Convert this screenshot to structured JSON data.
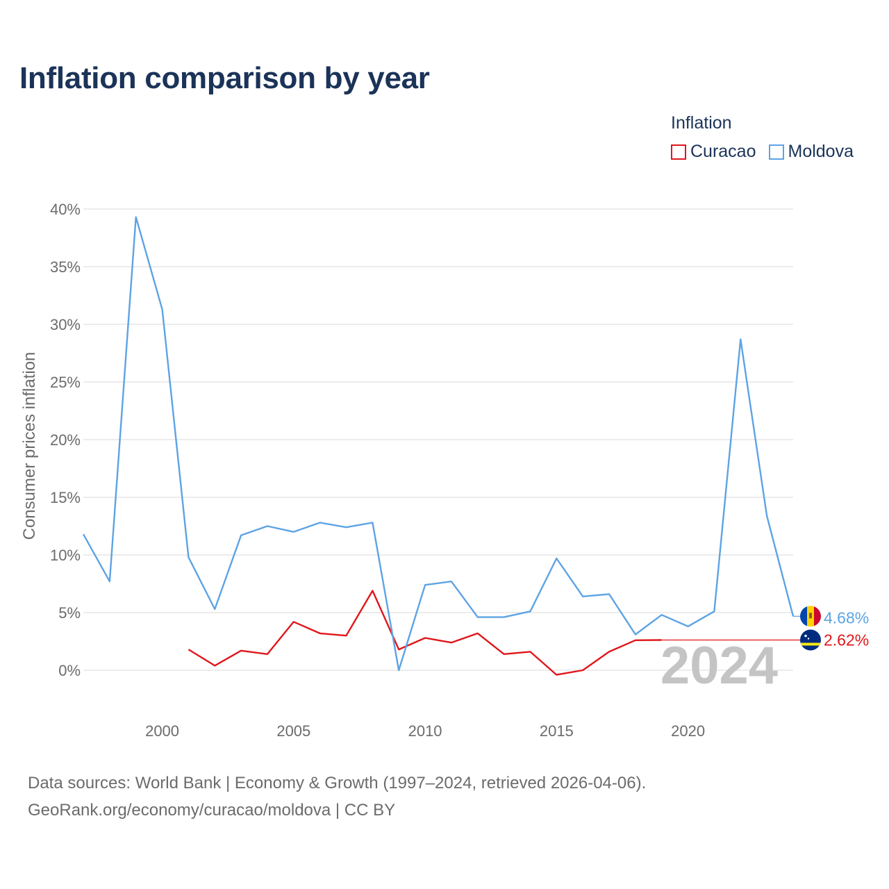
{
  "chart_data": {
    "type": "line",
    "title": "Inflation comparison by year",
    "legend_title": "Inflation",
    "ylabel": "Consumer prices inflation",
    "xlabel": "",
    "xlim": [
      1997,
      2024
    ],
    "ylim": [
      -3,
      42
    ],
    "x_ticks": [
      2000,
      2005,
      2010,
      2015,
      2020
    ],
    "y_ticks": [
      0,
      5,
      10,
      15,
      20,
      25,
      30,
      35,
      40
    ],
    "y_tick_labels": [
      "0%",
      "5%",
      "10%",
      "15%",
      "20%",
      "25%",
      "30%",
      "35%",
      "40%"
    ],
    "current_year": "2024",
    "series": [
      {
        "name": "Curacao",
        "color": "#e0161b",
        "end_label": "2.62%",
        "end_value": 2.62,
        "flag": "curacao-flag",
        "x": [
          2001,
          2002,
          2003,
          2004,
          2005,
          2006,
          2007,
          2008,
          2009,
          2010,
          2011,
          2012,
          2013,
          2014,
          2015,
          2016,
          2017,
          2018,
          2019
        ],
        "values": [
          1.8,
          0.4,
          1.7,
          1.4,
          4.2,
          3.2,
          3.0,
          6.9,
          1.8,
          2.8,
          2.4,
          3.2,
          1.4,
          1.6,
          -0.4,
          0.0,
          1.6,
          2.6,
          2.62
        ]
      },
      {
        "name": "Moldova",
        "color": "#5da3e4",
        "end_label": "4.68%",
        "end_value": 4.68,
        "flag": "moldova-flag",
        "x": [
          1997,
          1998,
          1999,
          2000,
          2001,
          2002,
          2003,
          2004,
          2005,
          2006,
          2007,
          2008,
          2009,
          2010,
          2011,
          2012,
          2013,
          2014,
          2015,
          2016,
          2017,
          2018,
          2019,
          2020,
          2021,
          2022,
          2023,
          2024
        ],
        "values": [
          11.8,
          7.7,
          39.3,
          31.3,
          9.8,
          5.3,
          11.7,
          12.5,
          12.0,
          12.8,
          12.4,
          12.8,
          0.0,
          7.4,
          7.7,
          4.6,
          4.6,
          5.1,
          9.7,
          6.4,
          6.6,
          3.1,
          4.8,
          3.8,
          5.1,
          28.7,
          13.4,
          4.68
        ]
      }
    ]
  },
  "source": {
    "line1": "Data sources: World Bank | Economy & Growth (1997–2024, retrieved 2026-04-06).",
    "line2": "GeoRank.org/economy/curacao/moldova | CC BY"
  }
}
